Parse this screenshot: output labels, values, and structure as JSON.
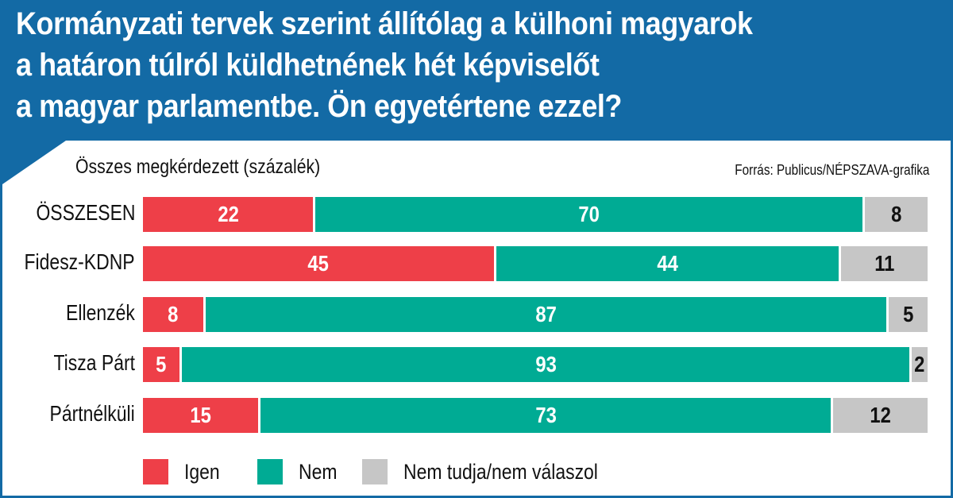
{
  "chart_data": {
    "type": "bar",
    "orientation": "horizontal",
    "stacked": true,
    "title": "Kormányzati tervek szerint állítólag a külhoni magyarok a határon túlról küldhetnének hét képviselőt a magyar parlamentbe. Ön egyetértene ezzel?",
    "title_lines": [
      "Kormányzati tervek szerint állítólag a külhoni magyarok",
      "a határon túlról küldhetnének hét képviselőt",
      "a magyar parlamentbe. Ön egyetértene ezzel?"
    ],
    "subtitle": "Összes megkérdezett (százalék)",
    "source": "Forrás: Publicus/NÉPSZAVA-grafika",
    "categories": [
      "ÖSSZESEN",
      "Fidesz-KDNP",
      "Ellenzék",
      "Tisza Párt",
      "Pártnélküli"
    ],
    "series": [
      {
        "name": "Igen",
        "color": "#ee3f48",
        "values": [
          22,
          45,
          8,
          5,
          15
        ]
      },
      {
        "name": "Nem",
        "color": "#00ab94",
        "values": [
          70,
          44,
          87,
          93,
          73
        ]
      },
      {
        "name": "Nem tudja/nem válaszol",
        "color": "#c6c6c6",
        "values": [
          8,
          11,
          5,
          2,
          12
        ]
      }
    ],
    "xlim": [
      0,
      100
    ],
    "legend": "bottom",
    "colors": {
      "header": "#136aa5"
    }
  }
}
